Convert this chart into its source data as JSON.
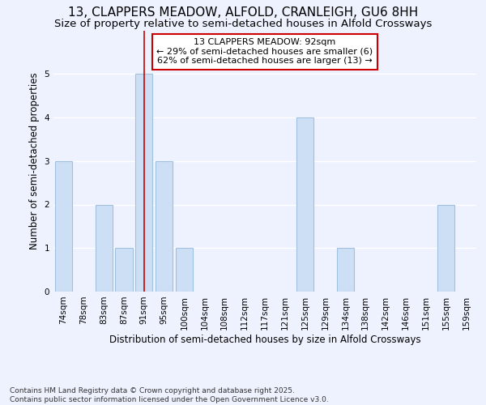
{
  "title": "13, CLAPPERS MEADOW, ALFOLD, CRANLEIGH, GU6 8HH",
  "subtitle": "Size of property relative to semi-detached houses in Alfold Crossways",
  "xlabel": "Distribution of semi-detached houses by size in Alfold Crossways",
  "ylabel": "Number of semi-detached properties",
  "categories": [
    "74sqm",
    "78sqm",
    "83sqm",
    "87sqm",
    "91sqm",
    "95sqm",
    "100sqm",
    "104sqm",
    "108sqm",
    "112sqm",
    "117sqm",
    "121sqm",
    "125sqm",
    "129sqm",
    "134sqm",
    "138sqm",
    "142sqm",
    "146sqm",
    "151sqm",
    "155sqm",
    "159sqm"
  ],
  "values": [
    3,
    0,
    2,
    1,
    5,
    3,
    1,
    0,
    0,
    0,
    0,
    0,
    4,
    0,
    1,
    0,
    0,
    0,
    0,
    2,
    0
  ],
  "highlight_index": 4,
  "bar_color": "#ccdff5",
  "bar_edge_color": "#a0c0e0",
  "highlight_line_color": "#cc0000",
  "annotation_text": "13 CLAPPERS MEADOW: 92sqm\n← 29% of semi-detached houses are smaller (6)\n62% of semi-detached houses are larger (13) →",
  "annotation_box_color": "#ffffff",
  "annotation_box_edge": "#cc0000",
  "footnote": "Contains HM Land Registry data © Crown copyright and database right 2025.\nContains public sector information licensed under the Open Government Licence v3.0.",
  "ylim": [
    0,
    6
  ],
  "background_color": "#eef2ff",
  "grid_color": "#ffffff",
  "title_fontsize": 11,
  "subtitle_fontsize": 9.5,
  "axis_label_fontsize": 8.5,
  "tick_fontsize": 7.5,
  "footnote_fontsize": 6.5
}
